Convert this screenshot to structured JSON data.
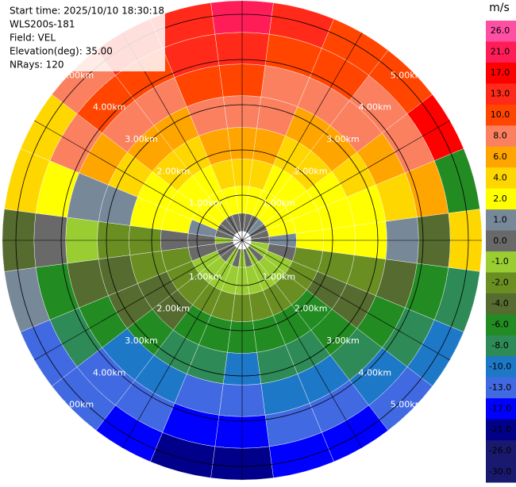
{
  "chart_data": {
    "type": "ppi",
    "header": [
      "Start time: 2025/10/10 18:30:18",
      "WLS200s-181",
      "Field: VEL",
      "Elevation(deg): 35.00",
      "NRays: 120"
    ],
    "unit": "m/s",
    "range_rings": [
      {
        "value": 1,
        "label": "1.00km"
      },
      {
        "value": 2,
        "label": "2.00km"
      },
      {
        "value": 3,
        "label": "3.00km"
      },
      {
        "value": 4,
        "label": "4.00km"
      },
      {
        "value": 5,
        "label": "5.00km"
      }
    ],
    "range_edges": [
      0.2,
      0.6,
      1.2,
      1.8,
      2.5,
      3.2,
      3.9,
      4.6,
      5.3
    ],
    "azimuths": [
      0,
      15,
      30,
      45,
      60,
      75,
      90,
      105,
      120,
      135,
      150,
      165,
      180,
      195,
      210,
      225,
      240,
      255,
      270,
      285,
      300,
      315,
      330,
      345
    ],
    "values": [
      [
        0.5,
        2.5,
        4.5,
        6.5,
        9,
        11,
        15,
        22
      ],
      [
        0.5,
        3,
        4.5,
        6.5,
        9,
        9,
        11,
        14
      ],
      [
        0.5,
        3,
        3,
        5,
        7,
        9,
        11,
        12
      ],
      [
        1.5,
        3,
        3,
        5,
        7,
        9,
        9,
        11
      ],
      [
        0.5,
        3,
        3,
        3,
        5,
        7,
        9,
        18
      ],
      [
        0.5,
        3,
        3,
        3,
        3,
        5,
        7,
        -5
      ],
      [
        0.5,
        1.5,
        3,
        3,
        3,
        1.5,
        -3,
        5
      ],
      [
        -0.5,
        0.5,
        -1.5,
        -1.5,
        -1.5,
        -3,
        -5,
        -7
      ],
      [
        -0.5,
        -0.5,
        -1.5,
        -3,
        -3,
        -5,
        -7,
        -9
      ],
      [
        0.5,
        -0.5,
        -1.5,
        -5,
        -5,
        -7,
        -9,
        -11
      ],
      [
        -0.5,
        -0.5,
        -1.5,
        -5,
        -7,
        -9,
        -11,
        -15
      ],
      [
        0.5,
        -0.5,
        -1.5,
        -5,
        -7,
        -9,
        -11,
        -15
      ],
      [
        -0.5,
        -0.5,
        -1.5,
        -5,
        -9,
        -11,
        -15,
        -19
      ],
      [
        0.5,
        -0.5,
        -1.5,
        -5,
        -7,
        -11,
        -15,
        -19
      ],
      [
        -0.5,
        -0.5,
        -1.5,
        -5,
        -7,
        -9,
        -11,
        -15
      ],
      [
        0.5,
        -0.5,
        -1.5,
        -3,
        -5,
        -9,
        -11,
        -11
      ],
      [
        0.5,
        -0.5,
        -1.5,
        -3,
        -3,
        -5,
        -7,
        -11
      ],
      [
        0.5,
        0.5,
        -1.5,
        -1.5,
        -3,
        -3,
        -5,
        1.5
      ],
      [
        -0.5,
        0.5,
        0.5,
        -1.5,
        -1.5,
        -0.5,
        0.5,
        -3
      ],
      [
        0.5,
        1.5,
        3,
        3,
        1.5,
        1.5,
        3,
        5
      ],
      [
        0.5,
        3,
        3,
        3,
        5,
        7,
        9,
        5
      ],
      [
        0.5,
        3,
        3,
        5,
        7,
        9,
        11,
        9
      ],
      [
        0.5,
        3,
        3,
        5,
        7,
        9,
        11,
        14
      ],
      [
        0.5,
        3,
        4.5,
        6.5,
        9,
        11,
        14,
        14
      ]
    ],
    "levels": [
      {
        "value": 26,
        "label": "26.0"
      },
      {
        "value": 21,
        "label": "21.0"
      },
      {
        "value": 17,
        "label": "17.0"
      },
      {
        "value": 13,
        "label": "13.0"
      },
      {
        "value": 10,
        "label": "10.0"
      },
      {
        "value": 8,
        "label": "8.0"
      },
      {
        "value": 6,
        "label": "6.0"
      },
      {
        "value": 4,
        "label": "4.0"
      },
      {
        "value": 2,
        "label": "2.0"
      },
      {
        "value": 1,
        "label": "1.0"
      },
      {
        "value": 0,
        "label": "0.0"
      },
      {
        "value": -1,
        "label": "-1.0"
      },
      {
        "value": -2,
        "label": "-2.0"
      },
      {
        "value": -4,
        "label": "-4.0"
      },
      {
        "value": -6,
        "label": "-6.0"
      },
      {
        "value": -8,
        "label": "-8.0"
      },
      {
        "value": -10,
        "label": "-10.0"
      },
      {
        "value": -13,
        "label": "-13.0"
      },
      {
        "value": -17,
        "label": "-17.0"
      },
      {
        "value": -21,
        "label": "-21.0"
      },
      {
        "value": -26,
        "label": "-26.0"
      },
      {
        "value": -30,
        "label": "-30.0"
      }
    ],
    "colors": [
      "#ff4fa3",
      "#ff1d58",
      "#ff0000",
      "#ff2a1a",
      "#ff4500",
      "#fa8060",
      "#ffa500",
      "#ffd700",
      "#ffff00",
      "#778899",
      "#696969",
      "#9acd32",
      "#6b8e23",
      "#556b2f",
      "#228b22",
      "#2e8b57",
      "#1e78c8",
      "#4169e1",
      "#0000ff",
      "#00008b",
      "#191970",
      "#191970"
    ]
  }
}
